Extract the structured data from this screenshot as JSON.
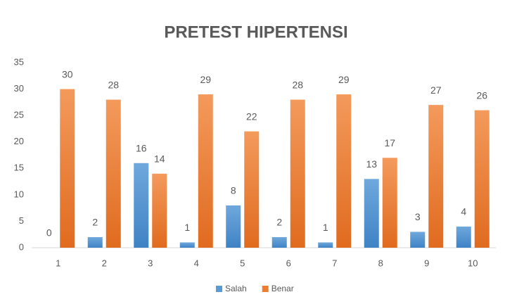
{
  "chart_data": {
    "type": "bar",
    "title": "PRETEST HIPERTENSI",
    "categories": [
      "1",
      "2",
      "3",
      "4",
      "5",
      "6",
      "7",
      "8",
      "9",
      "10"
    ],
    "series": [
      {
        "name": "Salah",
        "color": "#5b9bd5",
        "values": [
          0,
          2,
          16,
          1,
          8,
          2,
          1,
          13,
          3,
          4
        ]
      },
      {
        "name": "Benar",
        "color": "#ed7d31",
        "values": [
          30,
          28,
          14,
          29,
          22,
          28,
          29,
          17,
          27,
          26
        ]
      }
    ],
    "ylim": [
      0,
      35
    ],
    "yticks": [
      0,
      5,
      10,
      15,
      20,
      25,
      30,
      35
    ],
    "grid": false,
    "legend": "bottom"
  }
}
